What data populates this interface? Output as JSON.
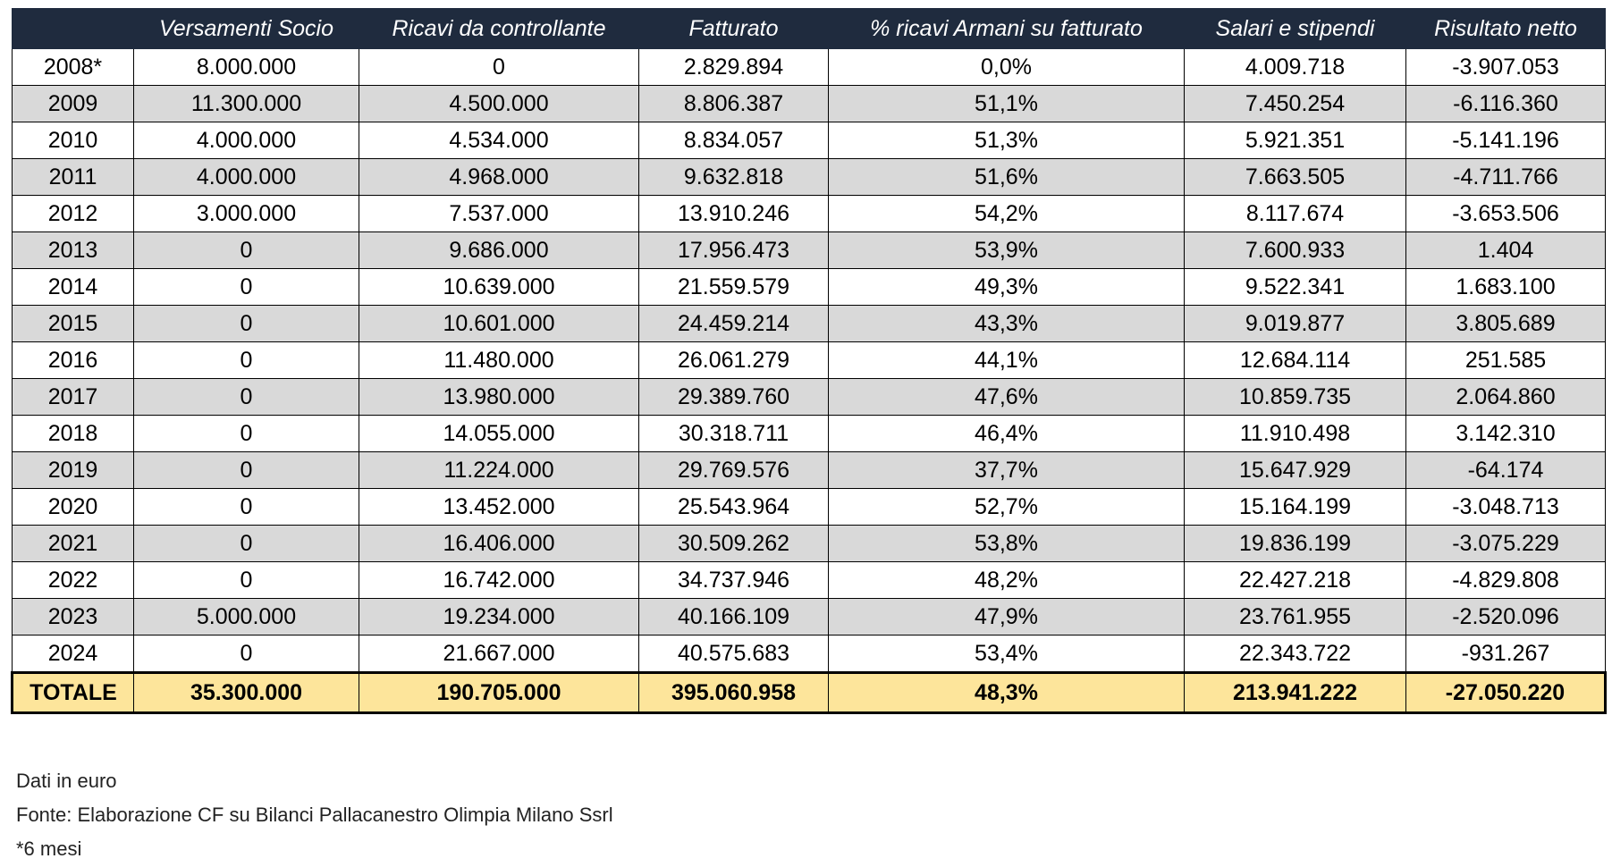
{
  "table": {
    "header": [
      "Versamenti Socio",
      "Ricavi da controllante",
      "Fatturato",
      "% ricavi Armani su fatturato",
      "Salari e stipendi",
      "Risultato netto"
    ],
    "rows": [
      [
        "2008*",
        "8.000.000",
        "0",
        "2.829.894",
        "0,0%",
        "4.009.718",
        "-3.907.053"
      ],
      [
        "2009",
        "11.300.000",
        "4.500.000",
        "8.806.387",
        "51,1%",
        "7.450.254",
        "-6.116.360"
      ],
      [
        "2010",
        "4.000.000",
        "4.534.000",
        "8.834.057",
        "51,3%",
        "5.921.351",
        "-5.141.196"
      ],
      [
        "2011",
        "4.000.000",
        "4.968.000",
        "9.632.818",
        "51,6%",
        "7.663.505",
        "-4.711.766"
      ],
      [
        "2012",
        "3.000.000",
        "7.537.000",
        "13.910.246",
        "54,2%",
        "8.117.674",
        "-3.653.506"
      ],
      [
        "2013",
        "0",
        "9.686.000",
        "17.956.473",
        "53,9%",
        "7.600.933",
        "1.404"
      ],
      [
        "2014",
        "0",
        "10.639.000",
        "21.559.579",
        "49,3%",
        "9.522.341",
        "1.683.100"
      ],
      [
        "2015",
        "0",
        "10.601.000",
        "24.459.214",
        "43,3%",
        "9.019.877",
        "3.805.689"
      ],
      [
        "2016",
        "0",
        "11.480.000",
        "26.061.279",
        "44,1%",
        "12.684.114",
        "251.585"
      ],
      [
        "2017",
        "0",
        "13.980.000",
        "29.389.760",
        "47,6%",
        "10.859.735",
        "2.064.860"
      ],
      [
        "2018",
        "0",
        "14.055.000",
        "30.318.711",
        "46,4%",
        "11.910.498",
        "3.142.310"
      ],
      [
        "2019",
        "0",
        "11.224.000",
        "29.769.576",
        "37,7%",
        "15.647.929",
        "-64.174"
      ],
      [
        "2020",
        "0",
        "13.452.000",
        "25.543.964",
        "52,7%",
        "15.164.199",
        "-3.048.713"
      ],
      [
        "2021",
        "0",
        "16.406.000",
        "30.509.262",
        "53,8%",
        "19.836.199",
        "-3.075.229"
      ],
      [
        "2022",
        "0",
        "16.742.000",
        "34.737.946",
        "48,2%",
        "22.427.218",
        "-4.829.808"
      ],
      [
        "2023",
        "5.000.000",
        "19.234.000",
        "40.166.109",
        "47,9%",
        "23.761.955",
        "-2.520.096"
      ],
      [
        "2024",
        "0",
        "21.667.000",
        "40.575.683",
        "53,4%",
        "22.343.722",
        "-931.267"
      ]
    ],
    "total": [
      "TOTALE",
      "35.300.000",
      "190.705.000",
      "395.060.958",
      "48,3%",
      "213.941.222",
      "-27.050.220"
    ]
  },
  "notes": [
    "Dati in euro",
    "Fonte: Elaborazione CF su Bilanci Pallacanestro Olimpia Milano Ssrl",
    "*6 mesi"
  ]
}
